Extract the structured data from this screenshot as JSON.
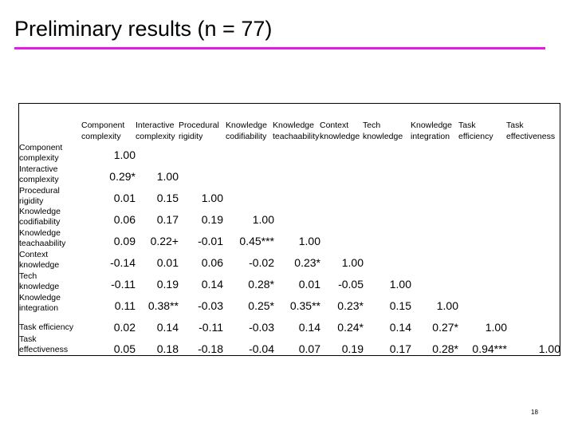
{
  "slide": {
    "title": "Preliminary results (n = 77)",
    "page_number": "18",
    "accent_color": "#e619e6"
  },
  "table": {
    "column_headers": [
      "Component\ncomplexity",
      "Interactive\ncomplexity",
      "Procedural\nrigidity",
      "Knowledge\ncodifiability",
      "Knowledge\nteachaability",
      "Context\nknowledge",
      "Tech\nknowledge",
      "Knowledge\nintegration",
      "Task\nefficiency",
      "Task\neffectiveness"
    ],
    "row_headers": [
      "Component\ncomplexity",
      "Interactive\ncomplexity",
      "Procedural\nrigidity",
      "Knowledge\ncodifiability",
      "Knowledge\nteachaability",
      "Context\nknowledge",
      "Tech\nknowledge",
      "Knowledge\nintegration",
      "Task efficiency",
      "Task\neffectiveness"
    ],
    "rows": [
      [
        "1.00"
      ],
      [
        "0.29*",
        "1.00"
      ],
      [
        "0.01",
        "0.15",
        "1.00"
      ],
      [
        "0.06",
        "0.17",
        "0.19",
        "1.00"
      ],
      [
        "0.09",
        "0.22+",
        "-0.01",
        "0.45***",
        "1.00"
      ],
      [
        "-0.14",
        "0.01",
        "0.06",
        "-0.02",
        "0.23*",
        "1.00"
      ],
      [
        "-0.11",
        "0.19",
        "0.14",
        "0.28*",
        "0.01",
        "-0.05",
        "1.00"
      ],
      [
        "0.11",
        "0.38**",
        "-0.03",
        "0.25*",
        "0.35**",
        "0.23*",
        "0.15",
        "1.00"
      ],
      [
        "0.02",
        "0.14",
        "-0.11",
        "-0.03",
        "0.14",
        "0.24*",
        "0.14",
        "0.27*",
        "1.00"
      ],
      [
        "0.05",
        "0.18",
        "-0.18",
        "-0.04",
        "0.07",
        "0.19",
        "0.17",
        "0.28*",
        "0.94***",
        "1.00"
      ]
    ]
  }
}
